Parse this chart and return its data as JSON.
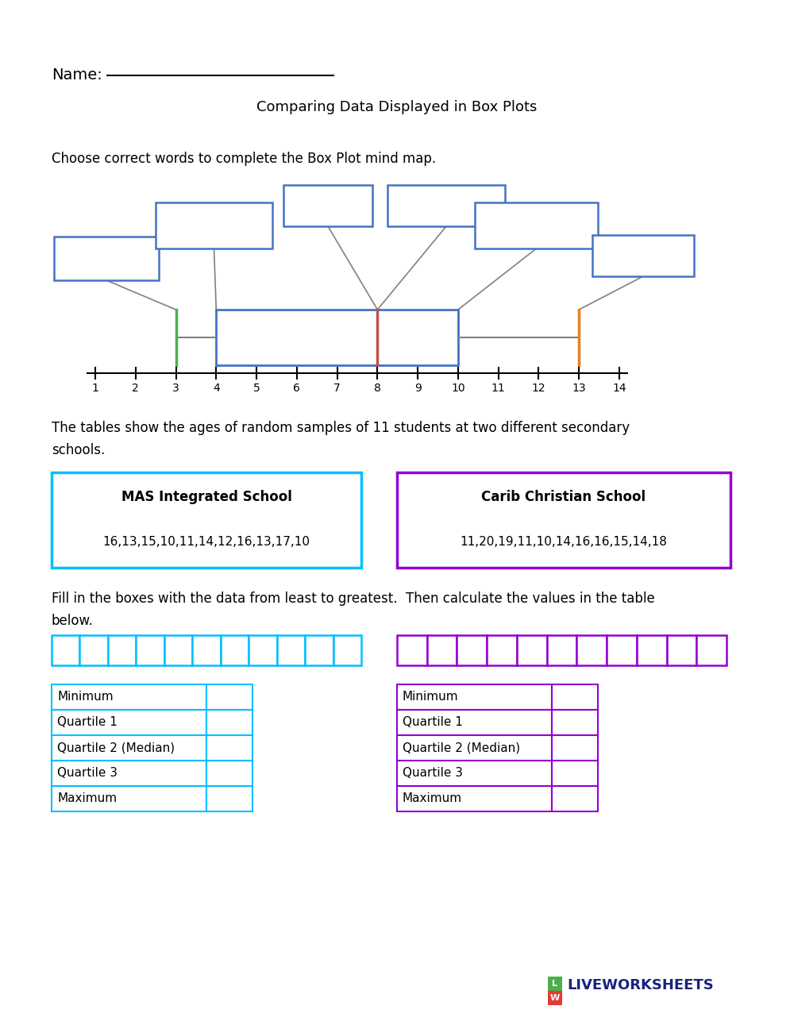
{
  "title": "Comparing Data Displayed in Box Plots",
  "name_label": "Name:",
  "instruction1": "Choose correct words to complete the Box Plot mind map.",
  "instruction2_line1": "The tables show the ages of random samples of 11 students at two different secondary",
  "instruction2_line2": "schools.",
  "instruction3_line1": "Fill in the boxes with the data from least to greatest.  Then calculate the values in the table",
  "instruction3_line2": "below.",
  "school1_name": "MAS Integrated School",
  "school1_data": "16,13,15,10,11,14,12,16,13,17,10",
  "school2_name": "Carib Christian School",
  "school2_data": "11,20,19,11,10,14,16,16,15,14,18",
  "school1_color": "#00BFFF",
  "school2_color": "#9400D3",
  "table_rows": [
    "Minimum",
    "Quartile 1",
    "Quartile 2 (Median)",
    "Quartile 3",
    "Maximum"
  ],
  "boxplot_color_box": "#4472C4",
  "boxplot_color_median": "#C0504D",
  "boxplot_color_whisker_left": "#4CAF50",
  "boxplot_color_whisker_right": "#E67E22",
  "axis_ticks": [
    1,
    2,
    3,
    4,
    5,
    6,
    7,
    8,
    9,
    10,
    11,
    12,
    13,
    14
  ],
  "logo_text": "LIVEWORKSHEETS",
  "background_color": "#FFFFFF",
  "mind_box_color": "#4472C4"
}
